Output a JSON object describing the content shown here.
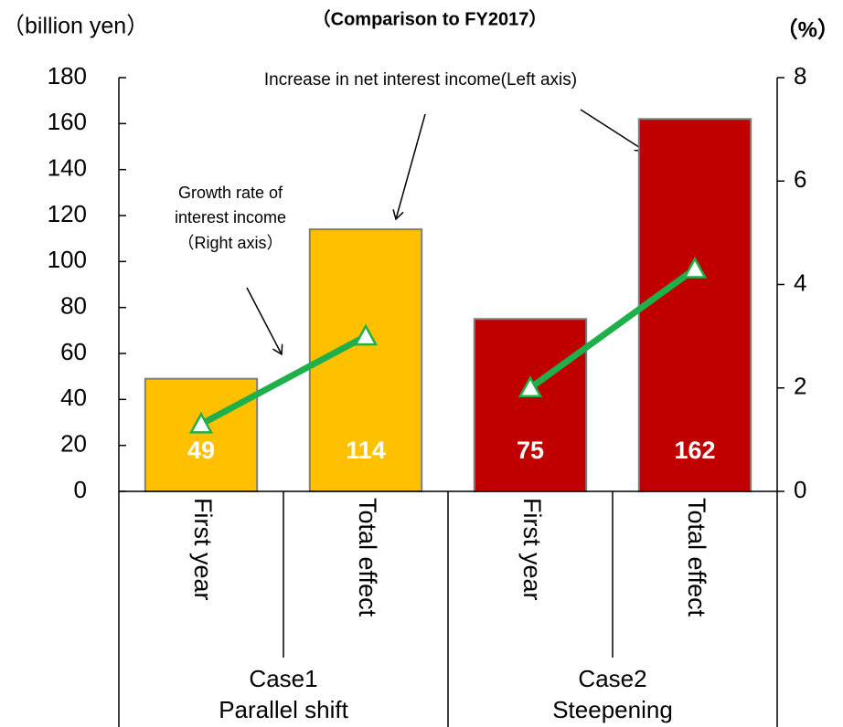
{
  "chart_data": {
    "type": "bar",
    "subtitle": "（Comparison to FY2017）",
    "ylabel": "（billion yen）",
    "y2label": "（%）",
    "ylim": [
      0,
      180
    ],
    "yticks": [
      0,
      20,
      40,
      60,
      80,
      100,
      120,
      140,
      160,
      180
    ],
    "y2lim": [
      0,
      8
    ],
    "y2ticks": [
      0,
      2,
      4,
      6,
      8
    ],
    "annotations": {
      "bars": "Increase in net interest income(Left axis)",
      "rates": [
        "Growth rate of",
        "interest income",
        "（Right axis）"
      ]
    },
    "rate_color": "#1faf4b",
    "groups": [
      {
        "label": [
          "Case1",
          "Parallel shift"
        ],
        "categories": [
          "First year",
          "Total effect"
        ],
        "color": "#ffc000",
        "values": [
          49,
          114
        ],
        "rates": [
          1.3,
          3.0
        ]
      },
      {
        "label": [
          "Case2",
          "Steepening"
        ],
        "categories": [
          "First year",
          "Total effect"
        ],
        "color": "#c00000",
        "values": [
          75,
          162
        ],
        "rates": [
          2.0,
          4.3
        ]
      }
    ]
  }
}
